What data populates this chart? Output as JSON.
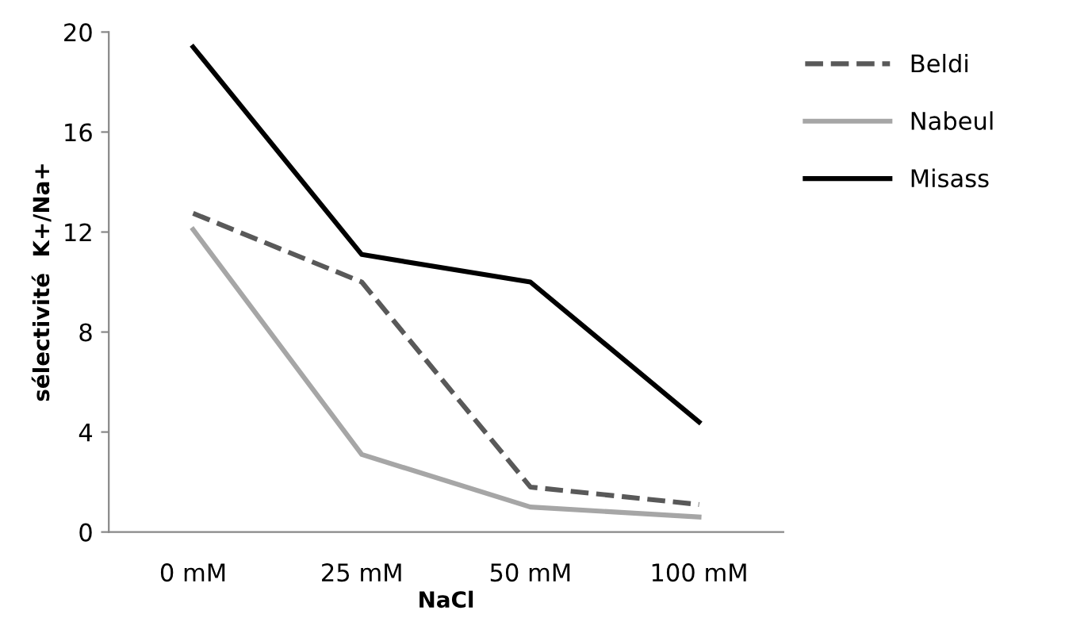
{
  "chart_data": {
    "type": "line",
    "xlabel": "NaCl",
    "ylabel": "sélectivité  K+/Na+",
    "categories": [
      "0 mM",
      "25 mM",
      "50 mM",
      "100 mM"
    ],
    "series": [
      {
        "name": "Beldi",
        "color": "#595959",
        "line_style": "dashed",
        "values": [
          12.75,
          10.0,
          1.8,
          1.1
        ]
      },
      {
        "name": "Nabeul",
        "color": "#a6a6a6",
        "line_style": "solid",
        "values": [
          12.1,
          3.1,
          1.0,
          0.6
        ]
      },
      {
        "name": "Misass",
        "color": "#000000",
        "line_style": "solid",
        "values": [
          19.4,
          11.1,
          10.0,
          4.4
        ]
      }
    ],
    "ylim": [
      0,
      20
    ],
    "yticks": [
      0,
      4,
      8,
      12,
      16,
      20
    ],
    "grid": false,
    "legend": "top right",
    "marker": "none"
  }
}
